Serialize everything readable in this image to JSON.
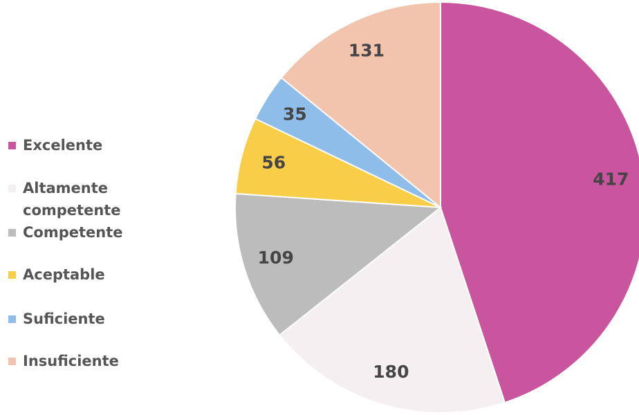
{
  "chart_data": {
    "type": "pie",
    "categories": [
      "Excelente",
      "Altamente competente",
      "Competente",
      "Aceptable",
      "Suficiente",
      "Insuficiente"
    ],
    "values": [
      417,
      180,
      109,
      56,
      35,
      131
    ],
    "colors": [
      "#c8559e",
      "#f6eff1",
      "#bcbcbc",
      "#f8cd48",
      "#8ebde9",
      "#f2c4ad"
    ],
    "legend": "left"
  }
}
